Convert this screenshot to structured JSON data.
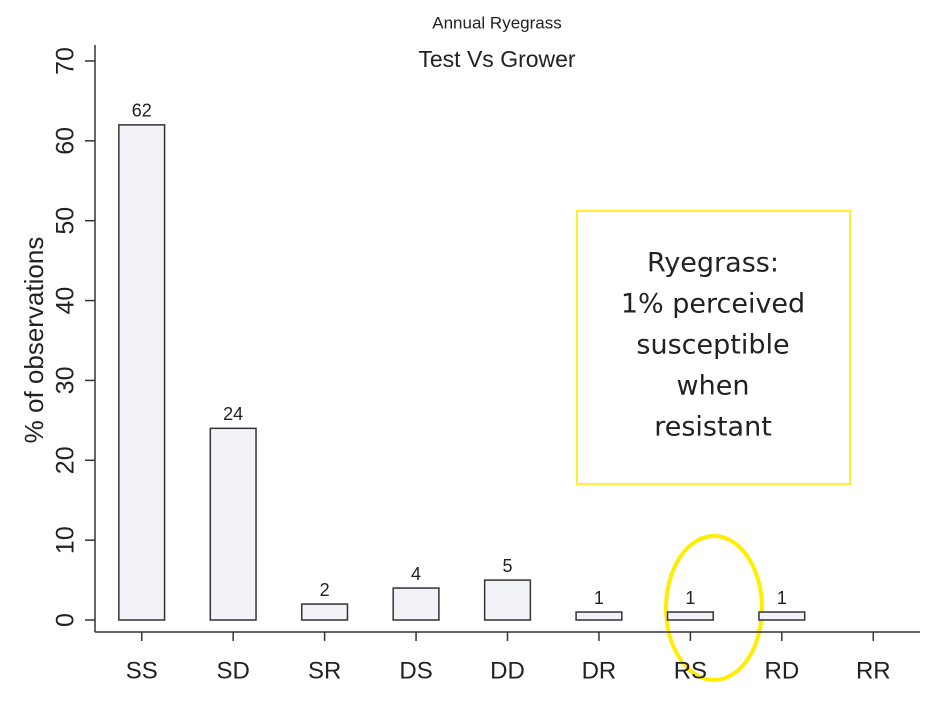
{
  "chart_data": {
    "type": "bar",
    "title": "Annual Ryegrass",
    "subtitle": "Test Vs Grower",
    "ylabel": "% of observations",
    "categories": [
      "SS",
      "SD",
      "SR",
      "DS",
      "DD",
      "DR",
      "RS",
      "RD",
      "RR"
    ],
    "values": [
      62,
      24,
      2,
      4,
      5,
      1,
      1,
      1,
      null
    ],
    "color": "#f1f3f8",
    "ylim": [
      -1.5,
      72
    ],
    "yticks": [
      0,
      10,
      20,
      30,
      40,
      50,
      60,
      70
    ],
    "annotation": [
      "Ryegrass:",
      "1% perceived",
      "susceptible",
      "when",
      "resistant"
    ]
  }
}
